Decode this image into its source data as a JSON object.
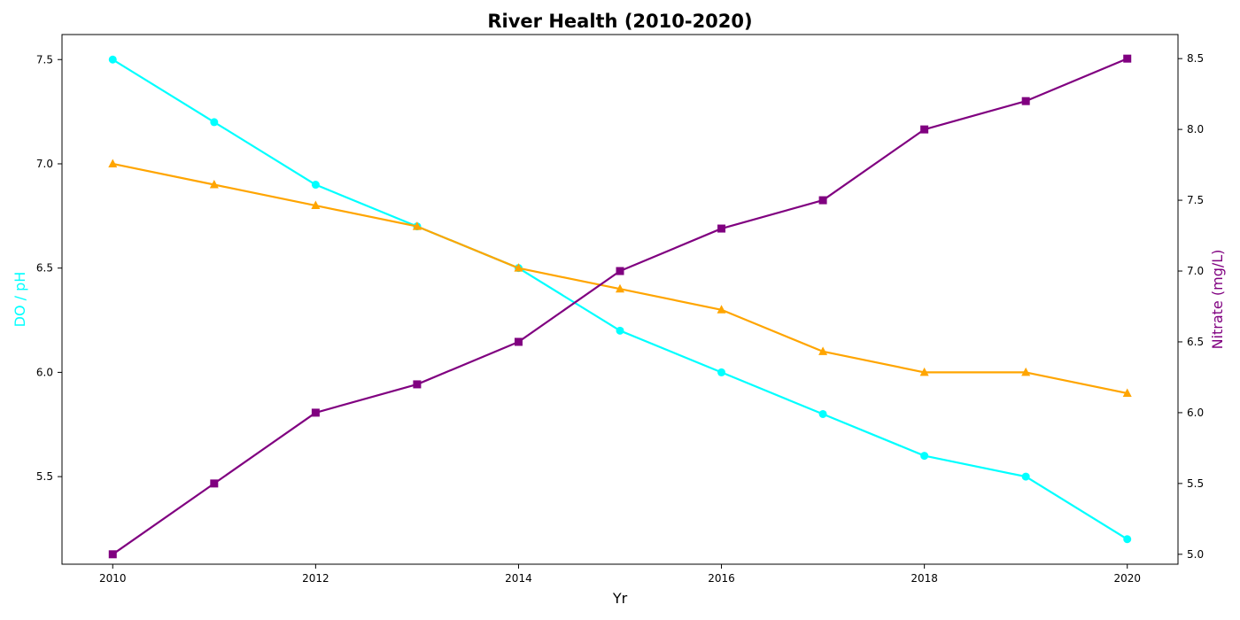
{
  "chart_data": {
    "type": "line",
    "title": "River Health (2010-2020)",
    "xlabel": "Yr",
    "ylabel_left": "DO / pH",
    "ylabel_right": "Nitrate (mg/L)",
    "x": [
      2010,
      2011,
      2012,
      2013,
      2014,
      2015,
      2016,
      2017,
      2018,
      2019,
      2020
    ],
    "xlim": [
      2009.5,
      2020.5
    ],
    "x_ticks": [
      2010,
      2012,
      2014,
      2016,
      2018,
      2020
    ],
    "ylim_left": [
      5.08,
      7.62
    ],
    "y_ticks_left": [
      "5.5",
      "6.0",
      "6.5",
      "7.0",
      "7.5"
    ],
    "ylim_right": [
      4.93,
      8.67
    ],
    "y_ticks_right": [
      "5.0",
      "5.5",
      "6.0",
      "6.5",
      "7.0",
      "7.5",
      "8.0",
      "8.5"
    ],
    "grid": false,
    "legend": "none",
    "series": [
      {
        "axis": "left",
        "color": "#00ffff",
        "marker": "circle",
        "values": [
          7.5,
          7.2,
          6.9,
          6.7,
          6.5,
          6.2,
          6.0,
          5.8,
          5.6,
          5.5,
          5.2
        ]
      },
      {
        "axis": "left",
        "color": "#ffa500",
        "marker": "triangle",
        "values": [
          7.0,
          6.9,
          6.8,
          6.7,
          6.5,
          6.4,
          6.3,
          6.1,
          6.0,
          6.0,
          5.9
        ]
      },
      {
        "axis": "right",
        "color": "#800080",
        "marker": "square",
        "values": [
          5.0,
          5.5,
          6.0,
          6.2,
          6.5,
          7.0,
          7.3,
          7.5,
          8.0,
          8.2,
          8.5
        ]
      }
    ],
    "colors": {
      "left_axis_label": "#00ffff",
      "right_axis_label": "#800080"
    }
  }
}
